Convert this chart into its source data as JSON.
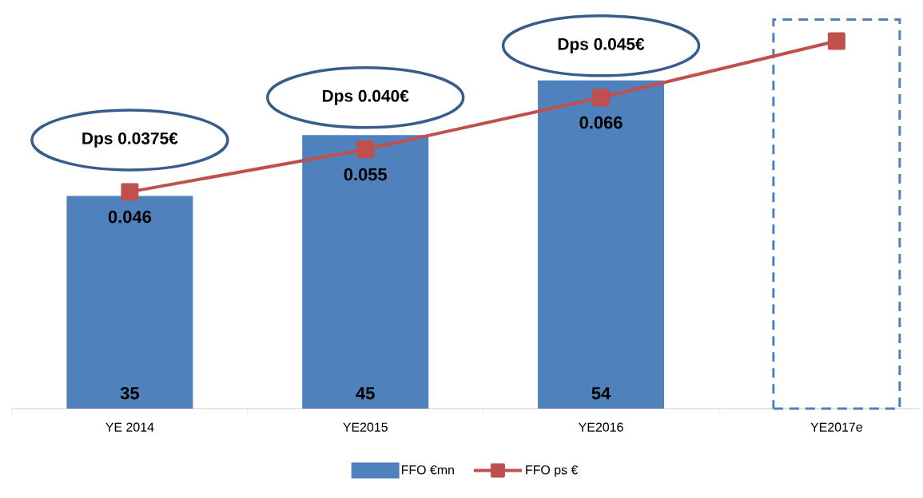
{
  "chart_data": {
    "type": "bar",
    "categories": [
      "YE 2014",
      "YE2015",
      "YE2016",
      "YE2017e"
    ],
    "series": [
      {
        "name": "FFO €mn",
        "color": "#4f81bd",
        "values": [
          35,
          45,
          54,
          null
        ],
        "value_labels": [
          "35",
          "45",
          "54",
          null
        ]
      },
      {
        "color": "#4f81bd",
        "values": [
          null,
          null,
          null,
          64
        ],
        "line_style": "dashed"
      },
      {
        "name": "FFO ps €",
        "type": "line",
        "axis": "y2",
        "color": "#c0504d",
        "marker": "square",
        "values": [
          0.046,
          0.055,
          0.066,
          0.078
        ],
        "value_labels": [
          "0.046",
          "0.055",
          "0.066",
          null
        ]
      }
    ],
    "tick_labels": "x",
    "legend": "bottom",
    "annotations": [
      "Dps 0.0375€",
      "Dps 0.040€",
      "Dps 0.045€"
    ]
  }
}
